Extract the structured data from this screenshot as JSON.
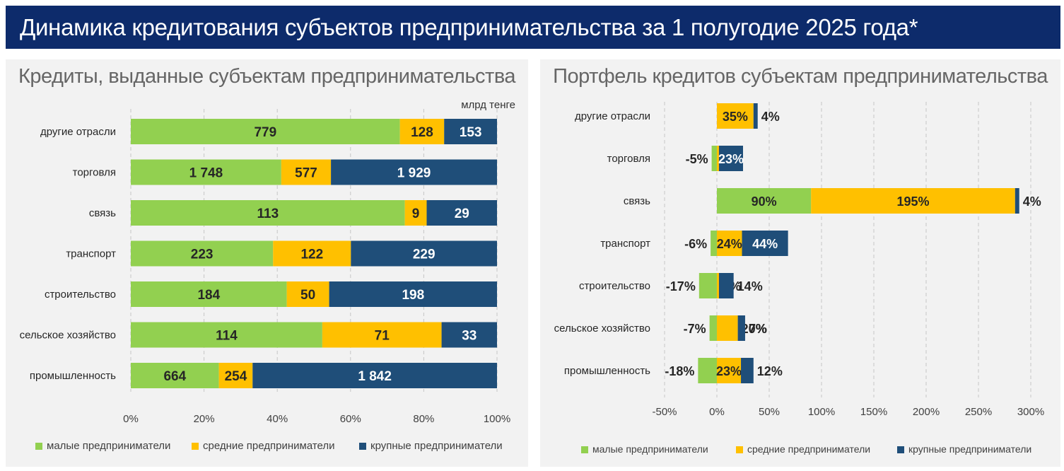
{
  "header": {
    "title": "Динамика кредитования субъектов предпринимательства за 1 полугодие 2025 года*"
  },
  "colors": {
    "header_bg": "#0d2b6b",
    "small": "#92d050",
    "medium": "#ffc000",
    "large": "#1f4e79"
  },
  "chart_data": [
    {
      "type": "bar",
      "orientation": "horizontal",
      "stacked": "percent",
      "title": "Кредиты, выданные субъектам предпринимательства",
      "units": "млрд тенге",
      "categories": [
        "другие отрасли",
        "торговля",
        "связь",
        "транспорт",
        "строительство",
        "сельское хозяйство",
        "промышленность"
      ],
      "series": [
        {
          "name": "малые предприниматели",
          "color": "#92d050",
          "values": [
            779,
            1748,
            113,
            223,
            184,
            114,
            664
          ],
          "labels": [
            "779",
            "1 748",
            "113",
            "223",
            "184",
            "114",
            "664"
          ]
        },
        {
          "name": "средние предприниматели",
          "color": "#ffc000",
          "values": [
            128,
            577,
            9,
            122,
            50,
            71,
            254
          ],
          "labels": [
            "128",
            "577",
            "9",
            "122",
            "50",
            "71",
            "254"
          ]
        },
        {
          "name": "крупные предприниматели",
          "color": "#1f4e79",
          "values": [
            153,
            1929,
            29,
            229,
            198,
            33,
            1842
          ],
          "labels": [
            "153",
            "1 929",
            "29",
            "229",
            "198",
            "33",
            "1 842"
          ]
        }
      ],
      "xlim": [
        0,
        100
      ],
      "xticks": [
        "0%",
        "20%",
        "40%",
        "60%",
        "80%",
        "100%"
      ],
      "grid": true,
      "legend": "bottom"
    },
    {
      "type": "bar",
      "orientation": "horizontal",
      "stacked": true,
      "title": "Портфель кредитов субъектам предпринимательства",
      "categories": [
        "другие отрасли",
        "торговля",
        "связь",
        "транспорт",
        "строительство",
        "сельское хозяйство",
        "промышленность"
      ],
      "series": [
        {
          "name": "малые предприниматели",
          "color": "#92d050",
          "values": [
            0,
            -5,
            90,
            -6,
            -17,
            -7,
            -18
          ],
          "labels": [
            "0%",
            "-5%",
            "90%",
            "-6%",
            "-17%",
            "-7%",
            "-18%"
          ]
        },
        {
          "name": "средние предприниматели",
          "color": "#ffc000",
          "values": [
            35,
            2,
            195,
            24,
            2,
            20,
            23
          ],
          "labels": [
            "35%",
            "2%",
            "195%",
            "24%",
            "2%",
            "20%",
            "23%"
          ]
        },
        {
          "name": "крупные предприниматели",
          "color": "#1f4e79",
          "values": [
            4,
            23,
            4,
            44,
            14,
            7,
            12
          ],
          "labels": [
            "4%",
            "23%",
            "4%",
            "44%",
            "14%",
            "7%",
            "12%"
          ]
        }
      ],
      "xlim": [
        -50,
        300
      ],
      "xticks": [
        "-50%",
        "0%",
        "50%",
        "100%",
        "150%",
        "200%",
        "250%",
        "300%"
      ],
      "grid": true,
      "legend": "bottom"
    }
  ]
}
